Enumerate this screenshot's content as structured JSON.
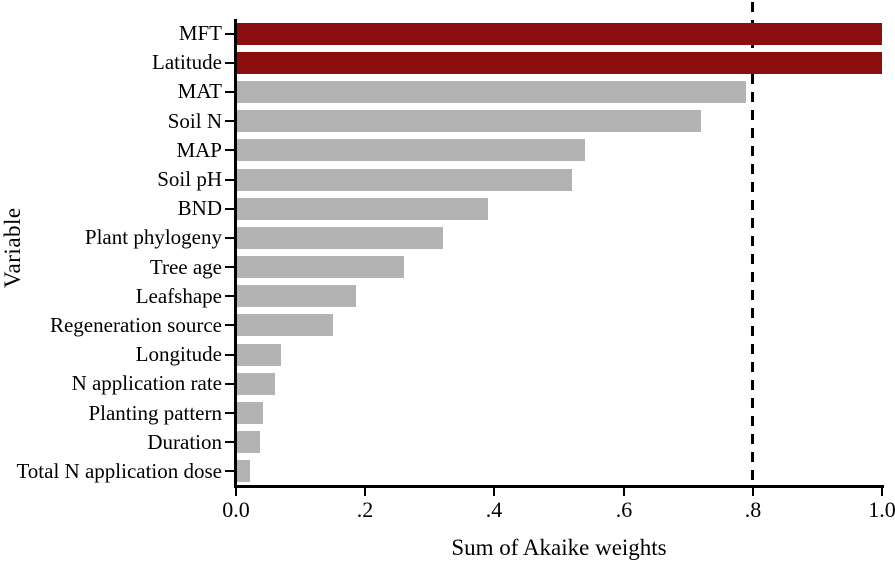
{
  "figure": {
    "background": "#ffffff",
    "bar_colors": {
      "highlight": "#8c0d0d",
      "default": "#b3b3b3"
    },
    "axis_color": "#000000"
  },
  "chart_data": {
    "type": "bar",
    "orientation": "horizontal",
    "title": "",
    "xlabel": "Sum of Akaike weights",
    "ylabel": "Variable",
    "xlim": [
      0.0,
      1.0
    ],
    "x_ticks": [
      {
        "label": "0.0",
        "value": 0.0
      },
      {
        "label": ".2",
        "value": 0.2
      },
      {
        "label": ".4",
        "value": 0.4
      },
      {
        "label": ".6",
        "value": 0.6
      },
      {
        "label": ".8",
        "value": 0.8
      },
      {
        "label": "1.0",
        "value": 1.0
      }
    ],
    "grid": false,
    "legend": "none",
    "reference_line": {
      "value": 0.8,
      "style": "dashed",
      "color": "#000000"
    },
    "categories": [
      "MFT",
      "Latitude",
      "MAT",
      "Soil N",
      "MAP",
      "Soil pH",
      "BND",
      "Plant phylogeny",
      "Tree age",
      "Leafshape",
      "Regeneration source",
      "Longitude",
      "N application rate",
      "Planting pattern",
      "Duration",
      "Total N application dose"
    ],
    "values": [
      1.0,
      1.0,
      0.79,
      0.72,
      0.54,
      0.52,
      0.39,
      0.32,
      0.26,
      0.185,
      0.15,
      0.07,
      0.06,
      0.042,
      0.037,
      0.022
    ],
    "highlighted": [
      "MFT",
      "Latitude"
    ]
  }
}
